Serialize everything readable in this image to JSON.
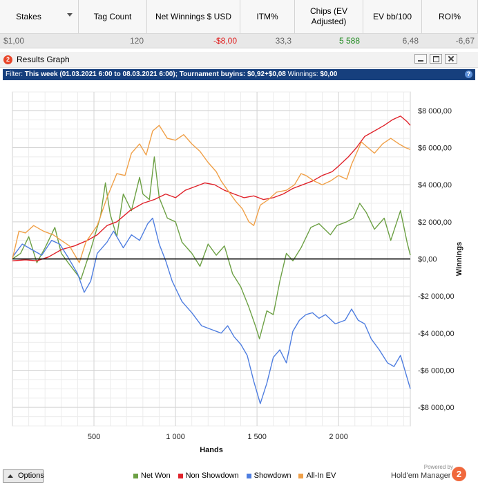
{
  "table": {
    "columns": [
      {
        "label": "Stakes",
        "width": 114,
        "dropdown": true
      },
      {
        "label": "Tag Count",
        "width": 99
      },
      {
        "label": "Net Winnings $ USD",
        "width": 135
      },
      {
        "label": "ITM%",
        "width": 79
      },
      {
        "label": "Chips (EV Adjusted)",
        "width": 99
      },
      {
        "label": "EV bb/100",
        "width": 85
      },
      {
        "label": "ROI%",
        "width": 81
      }
    ],
    "row": [
      {
        "value": "$1,00",
        "align": "left"
      },
      {
        "value": "120"
      },
      {
        "value": "-$8,00",
        "tone": "neg"
      },
      {
        "value": "33,3"
      },
      {
        "value": "5 588",
        "tone": "pos"
      },
      {
        "value": "6,48"
      },
      {
        "value": "-6,67"
      }
    ]
  },
  "window": {
    "title": "Results Graph",
    "logo_glyph": "2",
    "filter_prefix": "Filter: ",
    "filter_bold": "This week (01.03.2021 6:00 to 08.03.2021 6:00); Tournament buyins: $0,92+$0,08",
    "filter_mid": " Winnings: ",
    "filter_bold2": "$0,00",
    "help_glyph": "?"
  },
  "chart_data": {
    "type": "line",
    "xlabel": "Hands",
    "ylabel": "Winnings",
    "xlim": [
      0,
      2440
    ],
    "ylim": [
      -9000,
      9000
    ],
    "x_ticks": [
      500,
      1000,
      1500,
      2000
    ],
    "x_tick_labels": [
      "500",
      "1 000",
      "1 500",
      "2 000"
    ],
    "y_ticks": [
      8000,
      6000,
      4000,
      2000,
      0,
      -2000,
      -4000,
      -6000,
      -8000
    ],
    "y_tick_labels": [
      "$8 000,00",
      "$6 000,00",
      "$4 000,00",
      "$2 000,00",
      "$0,00",
      "-$2 000,00",
      "-$4 000,00",
      "-$6 000,00",
      "-$8 000,00"
    ],
    "grid": true,
    "legend_position": "bottom",
    "series": [
      {
        "name": "Net Won",
        "color": "#6ca044",
        "points": [
          [
            0,
            0
          ],
          [
            50,
            300
          ],
          [
            100,
            1200
          ],
          [
            150,
            -200
          ],
          [
            200,
            600
          ],
          [
            260,
            1700
          ],
          [
            300,
            300
          ],
          [
            350,
            -300
          ],
          [
            420,
            -1100
          ],
          [
            480,
            500
          ],
          [
            540,
            2300
          ],
          [
            570,
            4100
          ],
          [
            600,
            2400
          ],
          [
            640,
            1200
          ],
          [
            680,
            3500
          ],
          [
            730,
            2600
          ],
          [
            780,
            4400
          ],
          [
            800,
            3500
          ],
          [
            840,
            3200
          ],
          [
            870,
            5500
          ],
          [
            900,
            3300
          ],
          [
            950,
            2200
          ],
          [
            1000,
            2000
          ],
          [
            1040,
            900
          ],
          [
            1100,
            300
          ],
          [
            1150,
            -400
          ],
          [
            1200,
            800
          ],
          [
            1250,
            200
          ],
          [
            1300,
            700
          ],
          [
            1350,
            -800
          ],
          [
            1400,
            -1500
          ],
          [
            1450,
            -2600
          ],
          [
            1490,
            -3600
          ],
          [
            1515,
            -4300
          ],
          [
            1560,
            -2800
          ],
          [
            1600,
            -3000
          ],
          [
            1640,
            -1200
          ],
          [
            1680,
            300
          ],
          [
            1720,
            -100
          ],
          [
            1770,
            600
          ],
          [
            1830,
            1700
          ],
          [
            1880,
            1900
          ],
          [
            1950,
            1300
          ],
          [
            1990,
            1800
          ],
          [
            2050,
            2000
          ],
          [
            2090,
            2200
          ],
          [
            2130,
            3000
          ],
          [
            2170,
            2500
          ],
          [
            2220,
            1600
          ],
          [
            2280,
            2200
          ],
          [
            2320,
            1000
          ],
          [
            2380,
            2600
          ],
          [
            2420,
            900
          ],
          [
            2440,
            200
          ]
        ]
      },
      {
        "name": "Non Showdown",
        "color": "#e0232b",
        "points": [
          [
            0,
            -100
          ],
          [
            80,
            -50
          ],
          [
            150,
            -100
          ],
          [
            220,
            100
          ],
          [
            300,
            500
          ],
          [
            380,
            700
          ],
          [
            460,
            1000
          ],
          [
            520,
            1300
          ],
          [
            580,
            1800
          ],
          [
            640,
            2000
          ],
          [
            720,
            2600
          ],
          [
            800,
            3000
          ],
          [
            870,
            3200
          ],
          [
            940,
            3500
          ],
          [
            1000,
            3300
          ],
          [
            1060,
            3700
          ],
          [
            1120,
            3900
          ],
          [
            1180,
            4100
          ],
          [
            1240,
            4000
          ],
          [
            1300,
            3700
          ],
          [
            1360,
            3500
          ],
          [
            1420,
            3300
          ],
          [
            1480,
            3400
          ],
          [
            1540,
            3200
          ],
          [
            1600,
            3300
          ],
          [
            1660,
            3500
          ],
          [
            1720,
            3800
          ],
          [
            1780,
            4000
          ],
          [
            1840,
            4200
          ],
          [
            1900,
            4500
          ],
          [
            1960,
            4700
          ],
          [
            2000,
            5000
          ],
          [
            2060,
            5500
          ],
          [
            2110,
            6000
          ],
          [
            2160,
            6600
          ],
          [
            2220,
            6900
          ],
          [
            2280,
            7200
          ],
          [
            2330,
            7500
          ],
          [
            2380,
            7700
          ],
          [
            2420,
            7400
          ],
          [
            2440,
            7200
          ]
        ]
      },
      {
        "name": "Showdown",
        "color": "#4f7ee0",
        "points": [
          [
            0,
            100
          ],
          [
            60,
            800
          ],
          [
            120,
            500
          ],
          [
            180,
            200
          ],
          [
            240,
            1000
          ],
          [
            290,
            800
          ],
          [
            340,
            100
          ],
          [
            400,
            -800
          ],
          [
            440,
            -1800
          ],
          [
            480,
            -1200
          ],
          [
            520,
            300
          ],
          [
            580,
            900
          ],
          [
            620,
            1500
          ],
          [
            680,
            600
          ],
          [
            730,
            1300
          ],
          [
            780,
            1000
          ],
          [
            830,
            1900
          ],
          [
            860,
            2200
          ],
          [
            900,
            800
          ],
          [
            940,
            -100
          ],
          [
            980,
            -1200
          ],
          [
            1040,
            -2300
          ],
          [
            1100,
            -2900
          ],
          [
            1160,
            -3600
          ],
          [
            1220,
            -3800
          ],
          [
            1280,
            -4000
          ],
          [
            1320,
            -3600
          ],
          [
            1360,
            -4200
          ],
          [
            1400,
            -4600
          ],
          [
            1440,
            -5200
          ],
          [
            1480,
            -6600
          ],
          [
            1500,
            -7200
          ],
          [
            1520,
            -7800
          ],
          [
            1560,
            -6700
          ],
          [
            1600,
            -5300
          ],
          [
            1640,
            -4900
          ],
          [
            1680,
            -5600
          ],
          [
            1720,
            -3900
          ],
          [
            1760,
            -3300
          ],
          [
            1800,
            -3000
          ],
          [
            1840,
            -2900
          ],
          [
            1880,
            -3200
          ],
          [
            1920,
            -3000
          ],
          [
            1980,
            -3500
          ],
          [
            2040,
            -3300
          ],
          [
            2080,
            -2700
          ],
          [
            2120,
            -3300
          ],
          [
            2160,
            -3500
          ],
          [
            2200,
            -4300
          ],
          [
            2250,
            -4900
          ],
          [
            2300,
            -5600
          ],
          [
            2340,
            -5800
          ],
          [
            2380,
            -5200
          ],
          [
            2420,
            -6400
          ],
          [
            2440,
            -7000
          ]
        ]
      },
      {
        "name": "All-In EV",
        "color": "#f0a048",
        "points": [
          [
            0,
            0
          ],
          [
            40,
            1500
          ],
          [
            80,
            1400
          ],
          [
            130,
            1800
          ],
          [
            190,
            1500
          ],
          [
            250,
            1300
          ],
          [
            300,
            1000
          ],
          [
            350,
            700
          ],
          [
            410,
            -200
          ],
          [
            450,
            900
          ],
          [
            520,
            1800
          ],
          [
            580,
            3300
          ],
          [
            640,
            4600
          ],
          [
            690,
            4500
          ],
          [
            730,
            5700
          ],
          [
            780,
            6200
          ],
          [
            820,
            5600
          ],
          [
            860,
            6900
          ],
          [
            900,
            7200
          ],
          [
            950,
            6500
          ],
          [
            1000,
            6400
          ],
          [
            1050,
            6700
          ],
          [
            1100,
            6200
          ],
          [
            1150,
            5800
          ],
          [
            1200,
            5200
          ],
          [
            1250,
            4700
          ],
          [
            1280,
            4200
          ],
          [
            1320,
            3700
          ],
          [
            1370,
            3100
          ],
          [
            1410,
            2700
          ],
          [
            1450,
            2000
          ],
          [
            1480,
            1800
          ],
          [
            1520,
            2900
          ],
          [
            1570,
            3200
          ],
          [
            1620,
            3600
          ],
          [
            1680,
            3700
          ],
          [
            1730,
            4000
          ],
          [
            1770,
            4600
          ],
          [
            1800,
            4500
          ],
          [
            1850,
            4200
          ],
          [
            1900,
            4000
          ],
          [
            1950,
            4200
          ],
          [
            2000,
            4500
          ],
          [
            2050,
            4300
          ],
          [
            2080,
            5100
          ],
          [
            2110,
            5700
          ],
          [
            2140,
            6300
          ],
          [
            2180,
            6000
          ],
          [
            2220,
            5700
          ],
          [
            2270,
            6200
          ],
          [
            2320,
            6500
          ],
          [
            2370,
            6200
          ],
          [
            2410,
            6000
          ],
          [
            2440,
            5900
          ]
        ]
      }
    ]
  },
  "footer": {
    "options_label": "Options",
    "powered_by": "Powered by",
    "brand": "Hold'em Manager",
    "brand_logo": "2"
  }
}
